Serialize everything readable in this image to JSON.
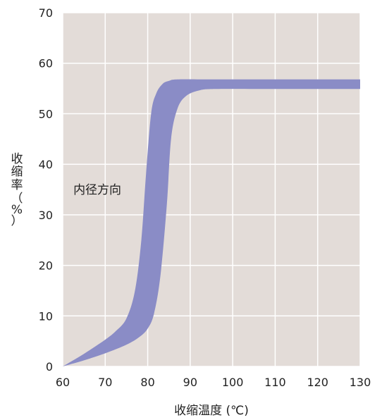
{
  "chart_data": {
    "type": "area",
    "xlabel": "收缩温度 (℃)",
    "ylabel": [
      "收",
      "缩",
      "率",
      "（",
      "%",
      "）"
    ],
    "xlim": [
      60,
      130
    ],
    "ylim": [
      0,
      70
    ],
    "x_ticks": [
      60,
      70,
      80,
      90,
      100,
      110,
      120,
      130
    ],
    "y_ticks": [
      0,
      10,
      20,
      30,
      40,
      50,
      60,
      70
    ],
    "grid": true,
    "background": "#e3dcd8",
    "band_color": "#8a8cc6",
    "annotations": [
      {
        "text": "内径方向",
        "x": 62.5,
        "y": 35
      }
    ],
    "series": [
      {
        "upper": [
          [
            60,
            0
          ],
          [
            65,
            2.5
          ],
          [
            70,
            5.3
          ],
          [
            72.5,
            7
          ],
          [
            75,
            9.5
          ],
          [
            77,
            15
          ],
          [
            78.5,
            25
          ],
          [
            79.6,
            38
          ],
          [
            80.8,
            50
          ],
          [
            82,
            54
          ],
          [
            83.5,
            55.9
          ],
          [
            85,
            56.5
          ],
          [
            87,
            56.8
          ],
          [
            95,
            56.8
          ],
          [
            110,
            56.8
          ],
          [
            130,
            56.8
          ]
        ],
        "lower": [
          [
            60,
            0
          ],
          [
            65,
            1.2
          ],
          [
            70,
            2.6
          ],
          [
            75,
            4.3
          ],
          [
            78,
            5.8
          ],
          [
            80,
            7.5
          ],
          [
            81.5,
            10.5
          ],
          [
            83,
            18
          ],
          [
            84.5,
            32
          ],
          [
            85.5,
            45
          ],
          [
            87,
            51
          ],
          [
            89,
            53.5
          ],
          [
            92,
            54.6
          ],
          [
            96,
            54.9
          ],
          [
            110,
            54.9
          ],
          [
            130,
            54.9
          ]
        ]
      }
    ]
  }
}
